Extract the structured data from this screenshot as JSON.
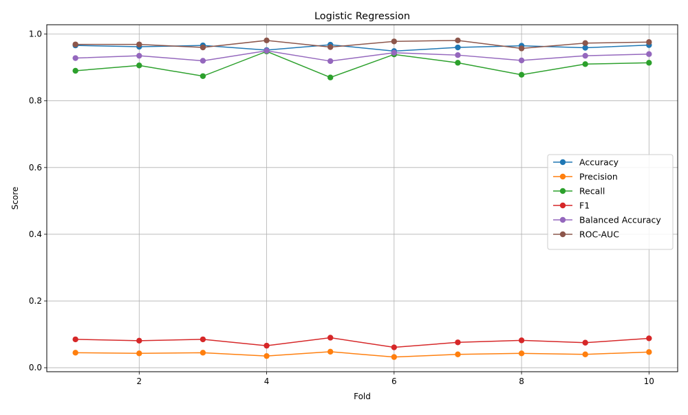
{
  "chart_data": {
    "type": "line",
    "title": "Logistic Regression",
    "xlabel": "Fold",
    "ylabel": "Score",
    "xlim": [
      0.55,
      10.45
    ],
    "ylim": [
      -0.012,
      1.028
    ],
    "xticks": [
      2,
      4,
      6,
      8,
      10
    ],
    "xtick_labels": [
      "2",
      "4",
      "6",
      "8",
      "10"
    ],
    "yticks": [
      0.0,
      0.2,
      0.4,
      0.6,
      0.8,
      1.0
    ],
    "ytick_labels": [
      "0.0",
      "0.2",
      "0.4",
      "0.6",
      "0.8",
      "1.0"
    ],
    "grid": true,
    "legend_position": "center-right",
    "x": [
      1,
      2,
      3,
      4,
      5,
      6,
      7,
      8,
      9,
      10
    ],
    "series": [
      {
        "name": "Accuracy",
        "color": "#1f77b4",
        "values": [
          0.966,
          0.962,
          0.966,
          0.952,
          0.968,
          0.949,
          0.96,
          0.965,
          0.959,
          0.967
        ]
      },
      {
        "name": "Precision",
        "color": "#ff7f0e",
        "values": [
          0.045,
          0.043,
          0.045,
          0.035,
          0.048,
          0.032,
          0.04,
          0.043,
          0.04,
          0.047
        ]
      },
      {
        "name": "Recall",
        "color": "#2ca02c",
        "values": [
          0.89,
          0.906,
          0.874,
          0.948,
          0.87,
          0.939,
          0.914,
          0.878,
          0.91,
          0.914
        ]
      },
      {
        "name": "F1",
        "color": "#d62728",
        "values": [
          0.085,
          0.081,
          0.085,
          0.066,
          0.09,
          0.061,
          0.076,
          0.082,
          0.075,
          0.088
        ]
      },
      {
        "name": "Balanced Accuracy",
        "color": "#9467bd",
        "values": [
          0.928,
          0.935,
          0.92,
          0.95,
          0.919,
          0.944,
          0.937,
          0.921,
          0.935,
          0.94
        ]
      },
      {
        "name": "ROC-AUC",
        "color": "#8c564b",
        "values": [
          0.969,
          0.969,
          0.96,
          0.981,
          0.961,
          0.978,
          0.981,
          0.957,
          0.973,
          0.976
        ]
      }
    ]
  }
}
